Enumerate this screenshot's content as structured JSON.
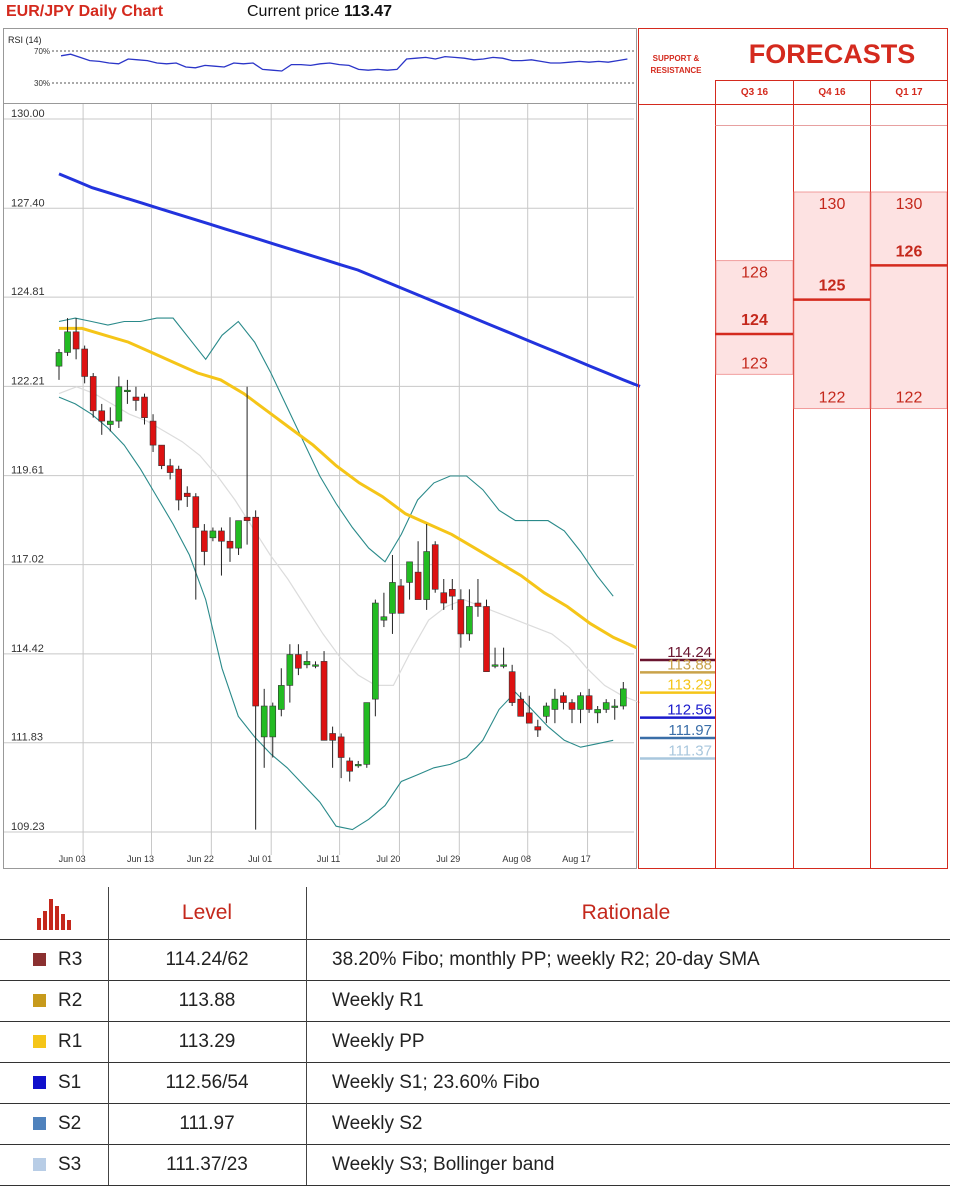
{
  "header": {
    "title": "EUR/JPY Daily Chart",
    "price_label": "Current price",
    "price_value": "113.47"
  },
  "colors": {
    "red_accent": "#d42a1e",
    "forecast_fill": "#fde2e2",
    "candle_up": "#22bb22",
    "candle_down": "#dd1111",
    "sma_blue": "#2233dd",
    "sma_yellow": "#f5c518",
    "bollinger": "#2a8a8a"
  },
  "rsi": {
    "label": "RSI (14)",
    "levels": [
      "70%",
      "30%"
    ],
    "values": [
      64,
      66,
      62,
      58,
      57,
      55,
      54,
      60,
      59,
      58,
      55,
      54,
      55,
      50,
      49,
      52,
      51,
      50,
      55,
      54,
      55,
      47,
      46,
      45,
      53,
      53,
      52,
      54,
      55,
      53,
      52,
      47,
      46,
      47,
      46,
      47,
      60,
      61,
      62,
      60,
      63,
      62,
      61,
      59,
      60,
      62,
      61,
      58,
      58,
      59,
      57,
      55,
      55,
      56,
      57,
      56,
      57,
      56,
      58,
      60
    ]
  },
  "chart_data": {
    "type": "candlestick",
    "title": "EUR/JPY Daily Chart",
    "y_ticks": [
      "130.00",
      "127.40",
      "124.81",
      "122.21",
      "119.61",
      "117.02",
      "114.42",
      "111.83",
      "109.23"
    ],
    "ylim": [
      109.23,
      130.0
    ],
    "x_ticks": [
      {
        "label": "Jun 03",
        "index": 2
      },
      {
        "label": "Jun 13",
        "index": 10
      },
      {
        "label": "Jun 22",
        "index": 17
      },
      {
        "label": "Jul 01",
        "index": 24
      },
      {
        "label": "Jul 11",
        "index": 32
      },
      {
        "label": "Jul 20",
        "index": 39
      },
      {
        "label": "Jul 29",
        "index": 46
      },
      {
        "label": "Aug 08",
        "index": 54
      },
      {
        "label": "Aug 17",
        "index": 61
      }
    ],
    "candles": [
      [
        122.8,
        123.3,
        122.4,
        123.2
      ],
      [
        123.2,
        124.2,
        123.1,
        123.8
      ],
      [
        123.8,
        124.2,
        123.0,
        123.3
      ],
      [
        123.3,
        123.4,
        122.3,
        122.5
      ],
      [
        122.5,
        122.6,
        121.3,
        121.5
      ],
      [
        121.5,
        121.7,
        120.8,
        121.2
      ],
      [
        121.1,
        121.6,
        120.9,
        121.2
      ],
      [
        121.2,
        122.5,
        121.0,
        122.2
      ],
      [
        122.1,
        122.4,
        121.7,
        122.1
      ],
      [
        121.9,
        122.2,
        121.5,
        121.8
      ],
      [
        121.9,
        122.0,
        121.1,
        121.3
      ],
      [
        121.2,
        121.4,
        120.3,
        120.5
      ],
      [
        120.5,
        120.5,
        119.8,
        119.9
      ],
      [
        119.9,
        120.1,
        119.5,
        119.7
      ],
      [
        119.8,
        119.9,
        118.6,
        118.9
      ],
      [
        119.1,
        119.3,
        118.7,
        119.0
      ],
      [
        119.0,
        119.1,
        116.0,
        118.1
      ],
      [
        118.0,
        118.2,
        117.0,
        117.4
      ],
      [
        117.8,
        118.1,
        117.7,
        118.0
      ],
      [
        118.0,
        118.1,
        116.7,
        117.7
      ],
      [
        117.7,
        118.4,
        117.1,
        117.5
      ],
      [
        117.5,
        118.3,
        117.3,
        118.3
      ],
      [
        118.4,
        122.2,
        117.6,
        118.3
      ],
      [
        118.4,
        118.6,
        109.3,
        112.9
      ],
      [
        112.0,
        113.4,
        111.1,
        112.9
      ],
      [
        112.0,
        113.0,
        111.4,
        112.9
      ],
      [
        112.8,
        114.0,
        112.6,
        113.5
      ],
      [
        113.5,
        114.7,
        113.0,
        114.4
      ],
      [
        114.4,
        114.7,
        113.8,
        114.0
      ],
      [
        114.1,
        114.5,
        114.0,
        114.2
      ],
      [
        114.1,
        114.2,
        114.0,
        114.1
      ],
      [
        114.2,
        114.5,
        111.9,
        111.9
      ],
      [
        112.1,
        112.3,
        111.1,
        111.9
      ],
      [
        112.0,
        112.1,
        110.8,
        111.4
      ],
      [
        111.3,
        111.4,
        110.7,
        111.0
      ],
      [
        111.2,
        111.3,
        111.1,
        111.2
      ],
      [
        111.2,
        113.0,
        111.1,
        113.0
      ],
      [
        113.1,
        116.0,
        112.6,
        115.9
      ],
      [
        115.4,
        116.2,
        115.2,
        115.5
      ],
      [
        115.6,
        117.3,
        115.0,
        116.5
      ],
      [
        116.4,
        116.6,
        115.6,
        115.6
      ],
      [
        116.5,
        117.1,
        116.0,
        117.1
      ],
      [
        116.8,
        117.7,
        116.2,
        116.0
      ],
      [
        116.0,
        118.2,
        115.7,
        117.4
      ],
      [
        117.6,
        117.7,
        116.2,
        116.3
      ],
      [
        116.2,
        116.6,
        115.7,
        115.9
      ],
      [
        116.3,
        116.6,
        115.7,
        116.1
      ],
      [
        116.0,
        116.3,
        114.6,
        115.0
      ],
      [
        115.0,
        116.3,
        114.8,
        115.8
      ],
      [
        115.9,
        116.6,
        115.5,
        115.8
      ],
      [
        115.8,
        116.0,
        113.9,
        113.9
      ],
      [
        114.1,
        114.6,
        114.0,
        114.1
      ],
      [
        114.1,
        114.6,
        114.0,
        114.1
      ],
      [
        113.9,
        114.1,
        112.9,
        113.0
      ],
      [
        113.1,
        113.3,
        112.6,
        112.6
      ],
      [
        112.7,
        113.2,
        112.4,
        112.4
      ],
      [
        112.3,
        112.5,
        112.0,
        112.2
      ],
      [
        112.6,
        113.0,
        112.4,
        112.9
      ],
      [
        112.8,
        113.4,
        112.4,
        113.1
      ],
      [
        113.2,
        113.3,
        112.8,
        113.0
      ],
      [
        113.0,
        113.1,
        112.4,
        112.8
      ],
      [
        112.8,
        113.3,
        112.4,
        113.2
      ],
      [
        113.2,
        113.4,
        112.7,
        112.8
      ],
      [
        112.7,
        112.9,
        112.4,
        112.8
      ],
      [
        112.8,
        113.1,
        112.7,
        113.0
      ],
      [
        112.9,
        113.1,
        112.5,
        112.9
      ],
      [
        112.9,
        113.6,
        112.8,
        113.4
      ]
    ],
    "series": [
      {
        "values": [
          128.4,
          128.2,
          128.0,
          127.85,
          127.7,
          127.55,
          127.4,
          127.25,
          127.1,
          126.95,
          126.8,
          126.65,
          126.5,
          126.35,
          126.2,
          126.05,
          125.9,
          125.75,
          125.6,
          125.4,
          125.2,
          125.0,
          124.8,
          124.6,
          124.4,
          124.2,
          124.0,
          123.8,
          123.6,
          123.4,
          123.2,
          123.0,
          122.8,
          122.6,
          122.4,
          122.21
        ]
      },
      {
        "values": [
          123.9,
          123.9,
          123.7,
          123.5,
          123.2,
          122.9,
          122.6,
          122.4,
          122.0,
          121.5,
          121.0,
          120.5,
          119.9,
          119.4,
          119.0,
          118.5,
          118.2,
          117.9,
          117.5,
          117.1,
          116.7,
          116.2,
          115.8,
          115.3,
          114.9,
          114.6
        ]
      },
      {
        "values": [
          122.0,
          122.2,
          122.0,
          121.7,
          121.4,
          121.2,
          120.9,
          120.6,
          120.2,
          119.6,
          118.9,
          118.1,
          117.3,
          116.6,
          115.8,
          115.0,
          114.3,
          113.8,
          113.5,
          113.5,
          114.5,
          115.4,
          115.8,
          116.0,
          115.8,
          115.6,
          115.4,
          115.2,
          115.0,
          114.6,
          114.0,
          113.5,
          113.2,
          113.0
        ]
      },
      {
        "values": [
          124.1,
          124.2,
          124.1,
          124.0,
          124.1,
          124.1,
          124.2,
          124.2,
          123.6,
          123.0,
          123.7,
          124.1,
          123.5,
          122.6,
          121.6,
          120.6,
          119.6,
          118.8,
          118.1,
          117.5,
          117.1,
          117.9,
          118.9,
          119.4,
          119.6,
          119.6,
          119.2,
          118.6,
          118.3,
          118.3,
          118.3,
          118.0,
          117.4,
          116.7,
          116.1
        ]
      },
      {
        "values": [
          121.9,
          121.7,
          121.4,
          121.0,
          120.5,
          119.8,
          119.0,
          118.2,
          117.3,
          116.0,
          114.0,
          112.6,
          112.0,
          111.5,
          111.1,
          110.6,
          110.1,
          109.4,
          109.3,
          109.6,
          110.0,
          110.7,
          110.9,
          111.1,
          111.2,
          111.4,
          111.9,
          112.8,
          113.3,
          112.8,
          112.3,
          111.9,
          111.7,
          111.8,
          111.9
        ]
      }
    ],
    "levels": [
      {
        "value": "114.24",
        "color": "#6a1530"
      },
      {
        "value": "113.88",
        "color": "#c9a24a"
      },
      {
        "value": "113.29",
        "color": "#f5c518"
      },
      {
        "value": "112.56",
        "color": "#1a1acc"
      },
      {
        "value": "111.97",
        "color": "#3a6ea8"
      },
      {
        "value": "111.37",
        "color": "#a9c7dd"
      }
    ],
    "forecasts": {
      "title": "FORECASTS",
      "sr_label_1": "SUPPORT &",
      "sr_label_2": "RESISTANCE",
      "columns": [
        {
          "name": "Q3 16",
          "high": "128",
          "target": "124",
          "low": "123",
          "target_value": 124,
          "high_value": 128,
          "low_value": 123
        },
        {
          "name": "Q4 16",
          "high": "130",
          "target": "125",
          "low": "122",
          "target_value": 125,
          "high_value": 130,
          "low_value": 122
        },
        {
          "name": "Q1 17",
          "high": "130",
          "target": "126",
          "low": "122",
          "target_value": 126,
          "high_value": 130,
          "low_value": 122
        }
      ]
    }
  },
  "table": {
    "header": {
      "level": "Level",
      "rationale": "Rationale"
    },
    "rows": [
      {
        "code": "R3",
        "color": "#8b3030",
        "level": "114.24/62",
        "rationale": "38.20% Fibo; monthly PP; weekly R2; 20-day SMA"
      },
      {
        "code": "R2",
        "color": "#c79a1c",
        "level": "113.88",
        "rationale": "Weekly R1"
      },
      {
        "code": "R1",
        "color": "#f5c518",
        "level": "113.29",
        "rationale": "Weekly PP"
      },
      {
        "code": "S1",
        "color": "#1010cc",
        "level": "112.56/54",
        "rationale": "Weekly S1; 23.60% Fibo"
      },
      {
        "code": "S2",
        "color": "#4f82bd",
        "level": "111.97",
        "rationale": "Weekly S2"
      },
      {
        "code": "S3",
        "color": "#b8cde6",
        "level": "111.37/23",
        "rationale": "Weekly S3; Bollinger band"
      }
    ]
  }
}
